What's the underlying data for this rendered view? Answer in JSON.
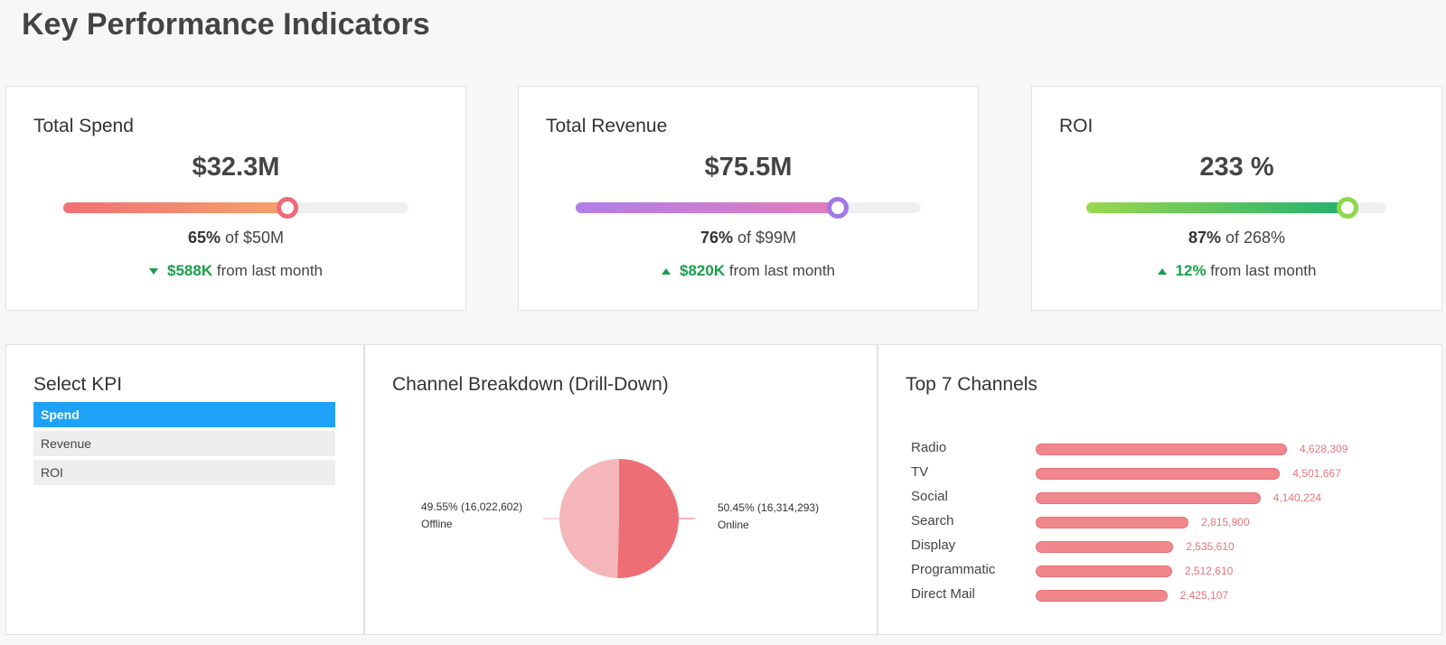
{
  "page": {
    "title": "Key Performance Indicators"
  },
  "kpis": [
    {
      "title": "Total Spend",
      "value": "$32.3M",
      "percent": 65,
      "percent_label": "65%",
      "target_label": "of $50M",
      "direction": "down",
      "delta": "$588K",
      "delta_suffix": "from last month",
      "color_from": "#f07175",
      "color_to": "#f5a26b",
      "knob_color": "#ee6a76"
    },
    {
      "title": "Total Revenue",
      "value": "$75.5M",
      "percent": 76,
      "percent_label": "76%",
      "target_label": "of $99M",
      "direction": "up",
      "delta": "$820K",
      "delta_suffix": "from last month",
      "color_from": "#b07ee8",
      "color_to": "#e27dbb",
      "knob_color": "#a277e8"
    },
    {
      "title": "ROI",
      "value": "233 %",
      "percent": 87,
      "percent_label": "87%",
      "target_label": "of 268%",
      "direction": "up",
      "delta": "12%",
      "delta_suffix": "from last month",
      "color_from": "#9bd84e",
      "color_to": "#22b16e",
      "knob_color": "#8fd84a"
    }
  ],
  "select_kpi": {
    "title": "Select KPI",
    "options": [
      "Spend",
      "Revenue",
      "ROI"
    ],
    "selected": "Spend"
  },
  "channel_breakdown": {
    "title": "Channel Breakdown (Drill-Down)"
  },
  "top_channels": {
    "title": "Top 7 Channels"
  },
  "chart_data": [
    {
      "type": "pie",
      "title": "Channel Breakdown (Drill-Down)",
      "slices": [
        {
          "name": "Online",
          "value": 16314293,
          "percent": 50.45,
          "label": "50.45% (16,314,293)",
          "color": "#ee6e76"
        },
        {
          "name": "Offline",
          "value": 16022602,
          "percent": 49.55,
          "label": "49.55% (16,022,602)",
          "color": "#f4b6b9"
        }
      ]
    },
    {
      "type": "bar",
      "orientation": "horizontal",
      "title": "Top 7 Channels",
      "categories": [
        "Radio",
        "TV",
        "Social",
        "Search",
        "Display",
        "Programmatic",
        "Direct Mail"
      ],
      "values": [
        4628309,
        4501667,
        4140224,
        2815900,
        2535610,
        2512610,
        2425107
      ],
      "value_labels": [
        "4,628,309",
        "4,501,667",
        "4,140,224",
        "2,815,900",
        "2,535,610",
        "2,512,610",
        "2,425,107"
      ],
      "color": "#f0878c"
    }
  ]
}
